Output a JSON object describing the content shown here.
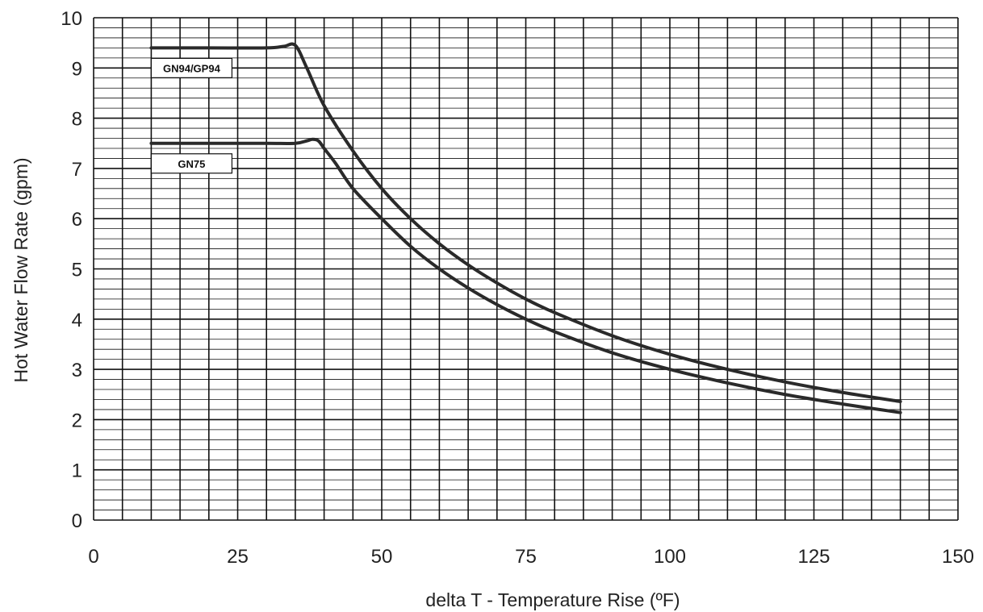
{
  "chart_data": {
    "type": "line",
    "title": "",
    "xlabel": "delta T - Temperature Rise (ºF)",
    "ylabel": "Hot Water Flow Rate (gpm)",
    "xlim": [
      0,
      150
    ],
    "ylim": [
      0,
      10
    ],
    "xticks": [
      "0",
      "25",
      "50",
      "75",
      "100",
      "125",
      "150"
    ],
    "yticks": [
      "0",
      "1",
      "2",
      "3",
      "4",
      "5",
      "6",
      "7",
      "8",
      "9",
      "10"
    ],
    "grid": true,
    "series": [
      {
        "name": "GN94/GP94",
        "color": "#2a2a2a",
        "x": [
          10,
          20,
          30,
          33,
          35,
          37,
          40,
          45,
          50,
          55,
          60,
          65,
          70,
          75,
          80,
          90,
          100,
          110,
          120,
          130,
          140
        ],
        "y": [
          9.4,
          9.4,
          9.4,
          9.43,
          9.45,
          9.0,
          8.25,
          7.35,
          6.6,
          6.0,
          5.5,
          5.08,
          4.72,
          4.4,
          4.13,
          3.67,
          3.3,
          3.0,
          2.75,
          2.54,
          2.36
        ]
      },
      {
        "name": "GN75",
        "color": "#2a2a2a",
        "x": [
          10,
          20,
          30,
          35,
          37,
          38,
          39,
          40,
          42,
          45,
          50,
          55,
          60,
          65,
          70,
          75,
          80,
          90,
          100,
          110,
          120,
          130,
          140
        ],
        "y": [
          7.5,
          7.5,
          7.5,
          7.5,
          7.55,
          7.58,
          7.55,
          7.4,
          7.1,
          6.6,
          6.0,
          5.45,
          5.0,
          4.62,
          4.29,
          4.0,
          3.75,
          3.33,
          3.0,
          2.73,
          2.5,
          2.31,
          2.14
        ]
      }
    ]
  }
}
